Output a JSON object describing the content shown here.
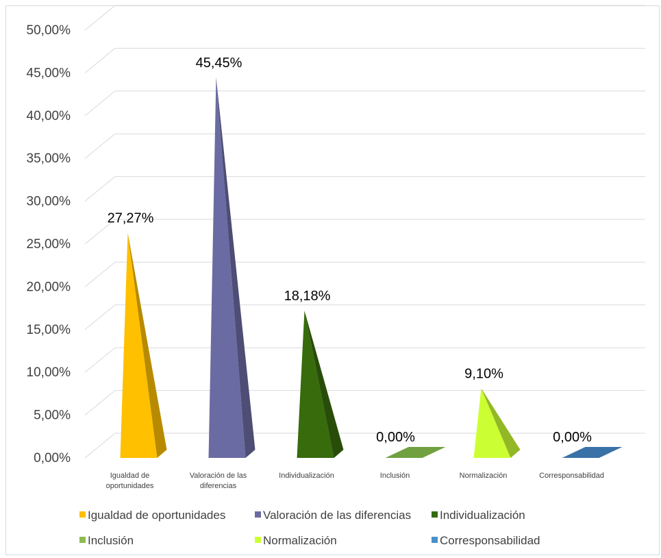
{
  "chart_data": {
    "type": "bar",
    "style": "3d-pyramid",
    "categories": [
      "Igualdad de oportunidades",
      "Valoración de las diferencias",
      "Individualización",
      "Inclusión",
      "Normalización",
      "Corresponsabilidad"
    ],
    "category_tick_lines": [
      [
        "Igualdad de",
        "oportunidades"
      ],
      [
        "Valoración de las",
        "diferencias"
      ],
      [
        "Individualización"
      ],
      [
        "Inclusión"
      ],
      [
        "Normalización"
      ],
      [
        "Corresponsabilidad"
      ]
    ],
    "values": [
      27.27,
      45.45,
      18.18,
      0.0,
      9.1,
      0.0
    ],
    "data_labels": [
      "27,27%",
      "45,45%",
      "18,18%",
      "0,00%",
      "9,10%",
      "0,00%"
    ],
    "colors": [
      "#FFC000",
      "#6B6BA3",
      "#376B0C",
      "#70A040",
      "#CCFF33",
      "#3A72A8"
    ],
    "ylim": [
      0,
      50
    ],
    "y_ticks": [
      "0,00%",
      "5,00%",
      "10,00%",
      "15,00%",
      "20,00%",
      "25,00%",
      "30,00%",
      "35,00%",
      "40,00%",
      "45,00%",
      "50,00%"
    ],
    "grid": true,
    "legend": {
      "placement": "bottom",
      "entries": [
        "Igualdad de oportunidades",
        "Valoración de las diferencias",
        "Individualización",
        "Inclusión",
        "Normalización",
        "Corresponsabilidad"
      ],
      "swatch_colors": [
        "#FFC000",
        "#6B6BA3",
        "#376B0C",
        "#8DBB4F",
        "#CCFF33",
        "#4A90C8"
      ]
    },
    "title": "",
    "xlabel": "",
    "ylabel": ""
  }
}
